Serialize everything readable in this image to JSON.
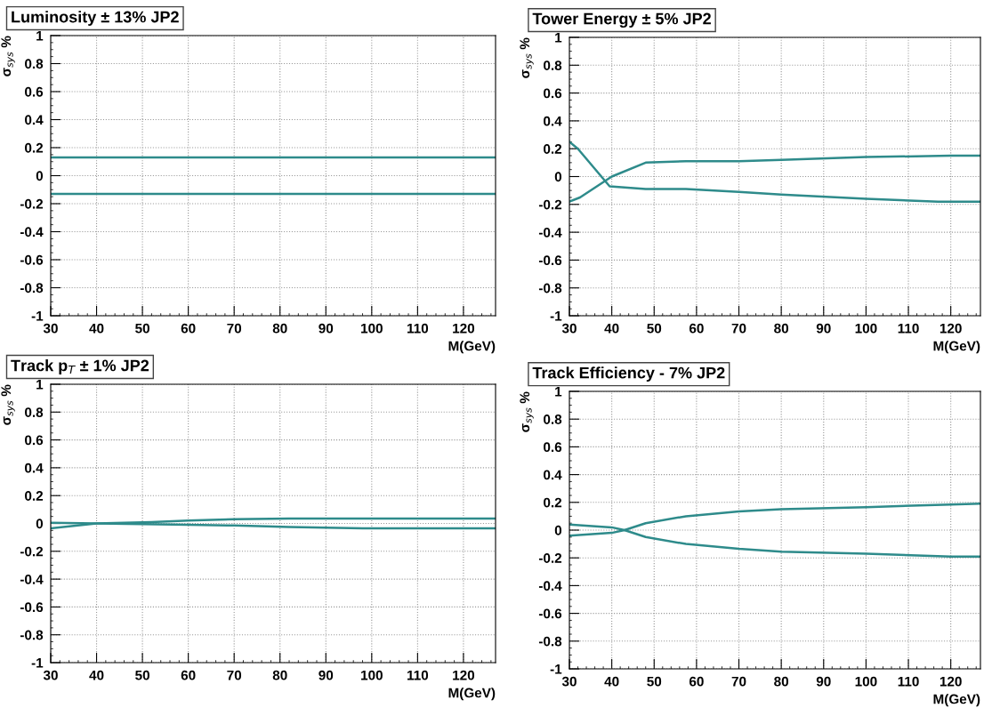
{
  "chart_data": [
    {
      "type": "line",
      "title": "Luminosity ± 13% JP2",
      "xlabel": "M(GeV)",
      "ylabel": "σ$_{sys}$ %",
      "xlim": [
        30,
        127
      ],
      "xticks": [
        30,
        40,
        50,
        60,
        70,
        80,
        90,
        100,
        110,
        120
      ],
      "ylim": [
        -1,
        1
      ],
      "yticks": [
        -1,
        -0.8,
        -0.6,
        -0.4,
        -0.2,
        0,
        0.2,
        0.4,
        0.6,
        0.8,
        1
      ],
      "grid": true,
      "series": [
        {
          "color": "#2e8b8b",
          "x": [
            30,
            127
          ],
          "values": [
            0.13,
            0.13
          ]
        },
        {
          "color": "#2e8b8b",
          "x": [
            30,
            127
          ],
          "values": [
            -0.13,
            -0.13
          ]
        }
      ]
    },
    {
      "type": "line",
      "title": "Tower Energy ± 5% JP2",
      "xlabel": "M(GeV)",
      "ylabel": "σ$_{sys}$ %",
      "xlim": [
        30,
        127
      ],
      "xticks": [
        30,
        40,
        50,
        60,
        70,
        80,
        90,
        100,
        110,
        120
      ],
      "ylim": [
        -1,
        1
      ],
      "yticks": [
        -1,
        -0.8,
        -0.6,
        -0.4,
        -0.2,
        0,
        0.2,
        0.4,
        0.6,
        0.8,
        1
      ],
      "grid": true,
      "series": [
        {
          "color": "#2e8b8b",
          "x": [
            30,
            32.5,
            40,
            48,
            57.5,
            70,
            80,
            100,
            120,
            127
          ],
          "values": [
            -0.18,
            -0.15,
            0.0,
            0.1,
            0.11,
            0.11,
            0.12,
            0.14,
            0.15,
            0.15
          ]
        },
        {
          "color": "#2e8b8b",
          "x": [
            30,
            32,
            39.5,
            48,
            57.5,
            70,
            80,
            100,
            117,
            127
          ],
          "values": [
            0.25,
            0.2,
            -0.07,
            -0.09,
            -0.09,
            -0.11,
            -0.13,
            -0.16,
            -0.18,
            -0.18
          ]
        }
      ]
    },
    {
      "type": "line",
      "title": "Track p$_{T}$ ± 1% JP2",
      "xlabel": "M(GeV)",
      "ylabel": "σ$_{sys}$ %",
      "xlim": [
        30,
        127
      ],
      "xticks": [
        30,
        40,
        50,
        60,
        70,
        80,
        90,
        100,
        110,
        120
      ],
      "ylim": [
        -1,
        1
      ],
      "yticks": [
        -1,
        -0.8,
        -0.6,
        -0.4,
        -0.2,
        0,
        0.2,
        0.4,
        0.6,
        0.8,
        1
      ],
      "grid": true,
      "series": [
        {
          "color": "#2e8b8b",
          "x": [
            30,
            40,
            52,
            60,
            65,
            70,
            82,
            127
          ],
          "values": [
            -0.035,
            0.0,
            0.01,
            0.02,
            0.025,
            0.03,
            0.035,
            0.035
          ]
        },
        {
          "color": "#2e8b8b",
          "x": [
            30,
            40,
            50,
            60,
            70,
            77,
            82,
            98,
            127
          ],
          "values": [
            0.005,
            0.0,
            -0.005,
            -0.01,
            -0.015,
            -0.02,
            -0.025,
            -0.035,
            -0.035
          ]
        }
      ]
    },
    {
      "type": "line",
      "title": "Track Efficiency - 7% JP2",
      "xlabel": "M(GeV)",
      "ylabel": "σ$_{sys}$ %",
      "xlim": [
        30,
        127
      ],
      "xticks": [
        30,
        40,
        50,
        60,
        70,
        80,
        90,
        100,
        110,
        120
      ],
      "ylim": [
        -1,
        1
      ],
      "yticks": [
        -1,
        -0.8,
        -0.6,
        -0.4,
        -0.2,
        0,
        0.2,
        0.4,
        0.6,
        0.8,
        1
      ],
      "grid": true,
      "series": [
        {
          "color": "#2e8b8b",
          "x": [
            30,
            40,
            43,
            48,
            57.5,
            70,
            80,
            100,
            120,
            127
          ],
          "values": [
            -0.04,
            -0.02,
            0.0,
            0.05,
            0.1,
            0.135,
            0.15,
            0.165,
            0.185,
            0.19
          ]
        },
        {
          "color": "#2e8b8b",
          "x": [
            30,
            40,
            43,
            48,
            57.5,
            70,
            80,
            100,
            120,
            127
          ],
          "values": [
            0.04,
            0.02,
            0.0,
            -0.05,
            -0.1,
            -0.135,
            -0.155,
            -0.17,
            -0.19,
            -0.19
          ]
        }
      ]
    }
  ]
}
